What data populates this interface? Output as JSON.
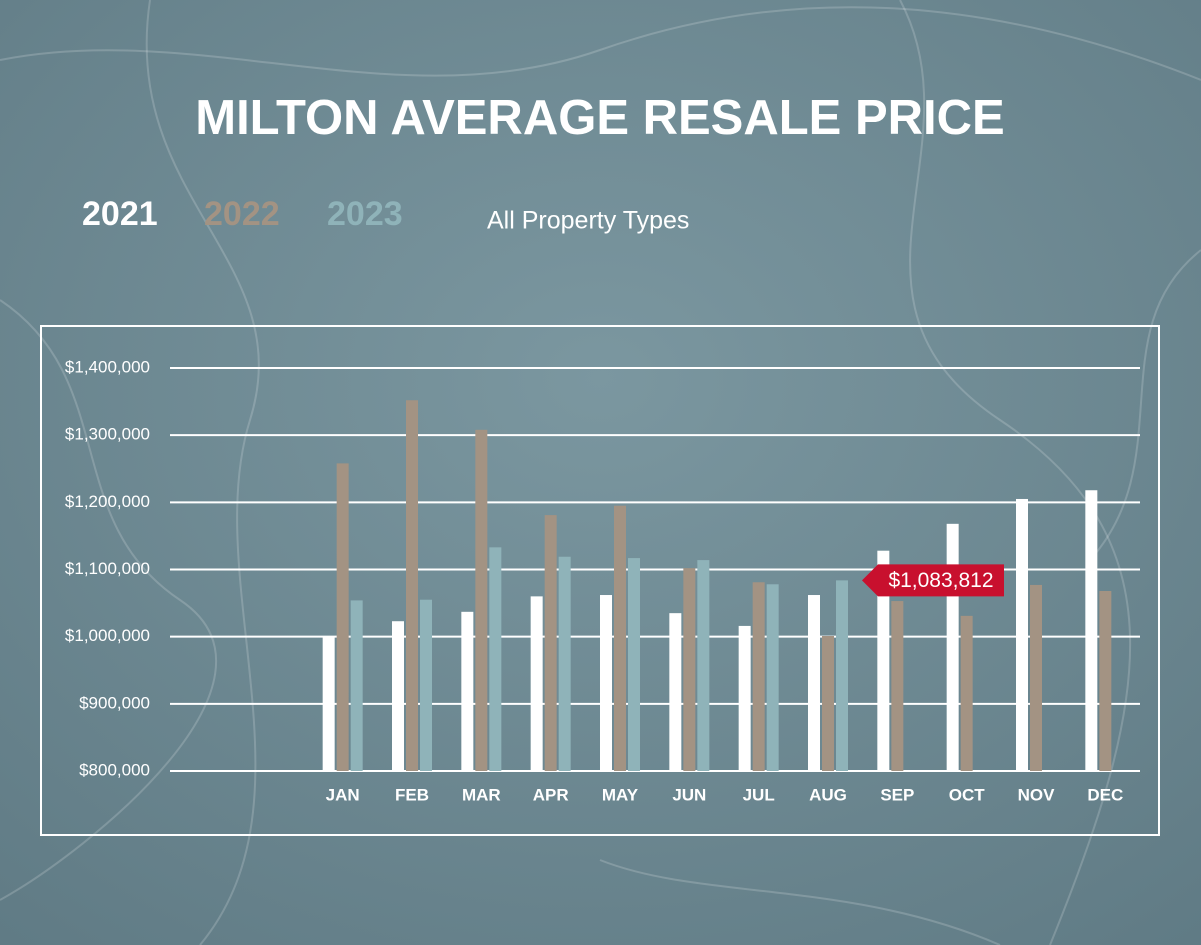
{
  "chart_data": {
    "type": "bar",
    "title": "MILTON AVERAGE RESALE PRICE",
    "subtitle": "All Property Types",
    "categories": [
      "JAN",
      "FEB",
      "MAR",
      "APR",
      "MAY",
      "JUN",
      "JUL",
      "AUG",
      "SEP",
      "OCT",
      "NOV",
      "DEC"
    ],
    "series": [
      {
        "name": "2021",
        "color": "#ffffff",
        "values": [
          1001000,
          1023000,
          1037000,
          1060000,
          1062000,
          1035000,
          1016000,
          1062000,
          1128000,
          1168000,
          1205000,
          1218000
        ]
      },
      {
        "name": "2022",
        "color": "#a39383",
        "values": [
          1258000,
          1352000,
          1308000,
          1181000,
          1195000,
          1102000,
          1081000,
          1001000,
          1053000,
          1031000,
          1077000,
          1068000
        ]
      },
      {
        "name": "2023",
        "color": "#8fb3b9",
        "values": [
          1054000,
          1055000,
          1133000,
          1119000,
          1117000,
          1114000,
          1078000,
          1083812,
          null,
          null,
          null,
          null
        ],
        "value_labels": [
          null,
          null,
          null,
          null,
          null,
          null,
          null,
          "$1,083,812",
          null,
          null,
          null,
          null
        ]
      }
    ],
    "ylim": [
      800000,
      1400000
    ],
    "yticks": [
      {
        "value": 800000,
        "label": "$800,000"
      },
      {
        "value": 900000,
        "label": "$900,000"
      },
      {
        "value": 1000000,
        "label": "$1,000,000"
      },
      {
        "value": 1100000,
        "label": "$1,100,000"
      },
      {
        "value": 1200000,
        "label": "$1,200,000"
      },
      {
        "value": 1300000,
        "label": "$1,300,000"
      },
      {
        "value": 1400000,
        "label": "$1,400,000"
      }
    ],
    "grid": true
  }
}
